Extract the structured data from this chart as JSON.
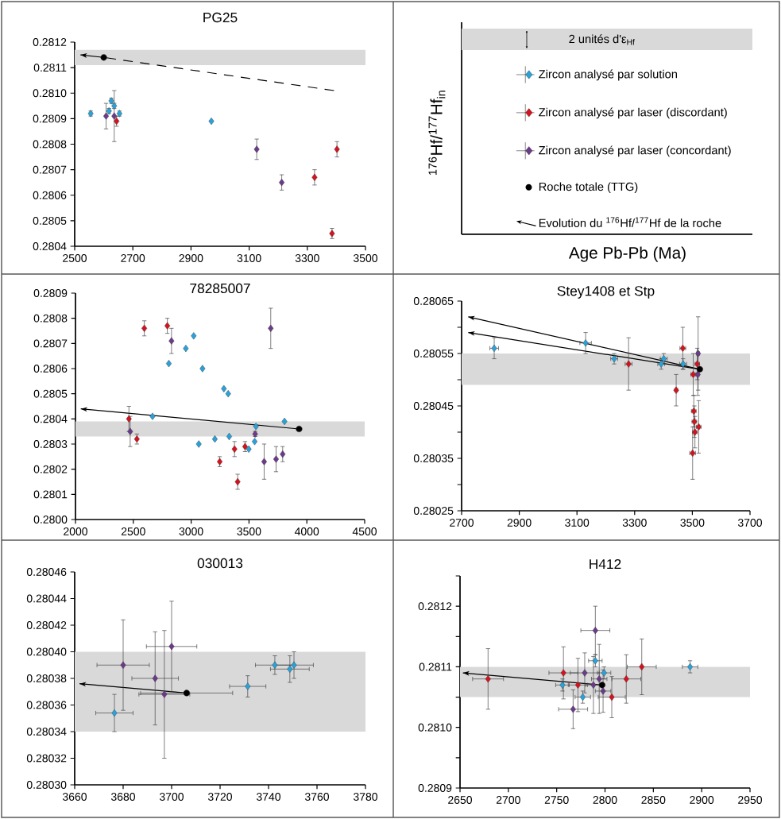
{
  "chart_data": [
    {
      "type": "scatter",
      "title": "PG25",
      "marker": "diamond",
      "xlim": [
        2500,
        3500
      ],
      "ylim": [
        0.2804,
        0.2812
      ],
      "xticks": [
        2500,
        2700,
        2900,
        3100,
        3300,
        3500
      ],
      "yticks": [
        0.2804,
        0.2805,
        0.2806,
        0.2807,
        0.2808,
        0.2809,
        {
          "value": 0.281,
          "label": "0.2810"
        },
        0.2811,
        0.2812
      ],
      "bands": [
        {
          "axis": "y",
          "from": 0.28111,
          "to": 0.28117,
          "color": "#d9d9d9"
        }
      ],
      "series": [
        {
          "type": "line",
          "color": "#000000",
          "marker": "none",
          "line_style": "solid",
          "x": [
            2600,
            2520
          ],
          "values": [
            0.28114,
            0.28115
          ]
        },
        {
          "type": "line",
          "color": "#000000",
          "marker": "none",
          "line_style": "dashed",
          "x": [
            2600,
            3392
          ],
          "values": [
            0.28114,
            0.28101
          ]
        },
        {
          "color": "#29a2d9",
          "x": [
            2555,
            2626,
            2636,
            2618,
            2654,
            2970
          ],
          "values": [
            0.28092,
            0.28097,
            0.28095,
            0.28093,
            0.28092,
            0.28089
          ],
          "errors": [
            1e-05,
            1e-05,
            1e-05,
            1e-05,
            1e-05,
            null
          ]
        },
        {
          "color": "#d5121e",
          "x": [
            2644,
            3325,
            3402,
            3385
          ],
          "values": [
            0.28089,
            0.28067,
            0.28078,
            0.28045
          ],
          "errors": [
            2e-05,
            3e-05,
            3e-05,
            2e-05
          ]
        },
        {
          "color": "#6c3a8a",
          "x": [
            2608,
            2636,
            3126,
            3212
          ],
          "values": [
            0.28091,
            0.28091,
            0.28078,
            0.28065
          ],
          "errors": [
            5e-05,
            0.0001,
            4e-05,
            3e-05
          ]
        },
        {
          "color": "#000000",
          "marker": "circle",
          "x": [
            2600
          ],
          "values": [
            0.28114
          ]
        }
      ]
    },
    {
      "type": "other",
      "xlabel": "Age Pb-Pb (Ma)",
      "ylabel": "$^{176}$Hf/$^{177}$Hf$_{in}$",
      "annotations": [
        "2 unités d'ε$_{Hf}$"
      ],
      "legend": "center",
      "series": [
        {
          "name": "Zircon analysé par solution",
          "color": "#29a2d9",
          "marker": "diamond"
        },
        {
          "name": "Zircon analysé par laser (discordant)",
          "color": "#d5121e",
          "marker": "diamond"
        },
        {
          "name": "Zircon analysé par laser (concordant)",
          "color": "#6c3a8a",
          "marker": "diamond"
        },
        {
          "name": "Roche totale (TTG)",
          "color": "#000000",
          "marker": "circle"
        },
        {
          "name": "Evolution du $^{176}$Hf/$^{177}$Hf de la roche",
          "type": "line",
          "color": "#000000"
        }
      ]
    },
    {
      "type": "scatter",
      "title": "78285007",
      "marker": "diamond",
      "xlim": [
        2000,
        4500
      ],
      "ylim": [
        0.28,
        0.2809
      ],
      "xticks": [
        2000,
        2500,
        3000,
        3500,
        4000,
        4500
      ],
      "yticks": [
        {
          "value": 0.28,
          "label": "0.2800"
        },
        0.2801,
        0.2802,
        0.2803,
        0.2804,
        0.2805,
        0.2806,
        0.2807,
        0.2808,
        0.2809
      ],
      "bands": [
        {
          "axis": "y",
          "from": 0.28033,
          "to": 0.28039,
          "color": "#d9d9d9"
        }
      ],
      "series": [
        {
          "type": "line",
          "color": "#000000",
          "marker": "none",
          "line_style": "solid",
          "x": [
            3933,
            2046
          ],
          "values": [
            0.28036,
            0.28044
          ]
        },
        {
          "color": "#29a2d9",
          "x": [
            2807,
            2666,
            3022,
            2954,
            3098,
            3283,
            3320,
            3066,
            3205,
            3329,
            3560,
            3549,
            3498,
            3807
          ],
          "values": [
            0.28062,
            0.28041,
            0.28073,
            0.28068,
            0.2806,
            0.28052,
            0.2805,
            0.2803,
            0.28032,
            0.28033,
            0.28037,
            0.28031,
            0.28028,
            0.28039
          ]
        },
        {
          "color": "#d5121e",
          "x": [
            2595,
            2794,
            2462,
            2531,
            3247,
            3375,
            3402,
            3466
          ],
          "values": [
            0.28076,
            0.28077,
            0.2804,
            0.28032,
            0.28023,
            0.28028,
            0.28015,
            0.28029
          ],
          "errors": [
            3e-05,
            3e-05,
            5e-05,
            2e-05,
            2e-05,
            3e-05,
            3e-05,
            2e-05
          ]
        },
        {
          "color": "#6c3a8a",
          "x": [
            2473,
            2830,
            3688,
            3553,
            3631,
            3734,
            3791
          ],
          "values": [
            0.28035,
            0.28071,
            0.28076,
            0.28034,
            0.28023,
            0.28024,
            0.28026
          ],
          "errors": [
            6e-05,
            5e-05,
            8e-05,
            1e-05,
            7e-05,
            5e-05,
            3e-05
          ]
        },
        {
          "color": "#000000",
          "marker": "circle",
          "x": [
            3933
          ],
          "values": [
            0.28036
          ]
        }
      ]
    },
    {
      "type": "scatter",
      "title": "Stey1408 et Stp",
      "marker": "diamond",
      "xlim": [
        2700,
        3700
      ],
      "ylim": [
        0.28025,
        0.28065
      ],
      "xticks": [
        2700,
        2900,
        3100,
        3300,
        3500,
        3700
      ],
      "yticks": [
        0.28025,
        {
          "value": 0.2803,
          "label": null
        },
        0.28035,
        {
          "value": 0.2804,
          "label": null
        },
        0.28045,
        {
          "value": 0.2805,
          "label": null
        },
        0.28055,
        {
          "value": 0.2806,
          "label": null
        },
        0.28065
      ],
      "bands": [
        {
          "axis": "y",
          "from": 0.28049,
          "to": 0.28055,
          "color": "#d9d9d9"
        }
      ],
      "series": [
        {
          "type": "line",
          "color": "#000000",
          "marker": "none",
          "line_style": "solid",
          "x": [
            3526,
            2723
          ],
          "values": [
            0.28052,
            0.28062
          ]
        },
        {
          "type": "line",
          "color": "#000000",
          "marker": "none",
          "line_style": "solid",
          "x": [
            3526,
            2723
          ],
          "values": [
            0.28052,
            0.28059
          ]
        },
        {
          "color": "#29a2d9",
          "x": [
            2813,
            3130,
            3229,
            3401,
            3392,
            3468
          ],
          "values": [
            0.28056,
            0.28057,
            0.28054,
            0.28054,
            0.28053,
            0.28053
          ],
          "errors": [
            2e-05,
            2e-05,
            1e-05,
            1e-05,
            1e-05,
            1e-05
          ],
          "xerrors": [
            15,
            20,
            12,
            12,
            12,
            12
          ]
        },
        {
          "color": "#d5121e",
          "x": [
            3279,
            3467,
            3444,
            3503,
            3517,
            3505,
            3507,
            3522,
            3509,
            3501
          ],
          "values": [
            0.28053,
            0.28056,
            0.28048,
            0.28051,
            0.28053,
            0.28044,
            0.28042,
            0.28041,
            0.2804,
            0.28036
          ],
          "errors": [
            5e-05,
            4e-05,
            3e-05,
            4e-05,
            3e-05,
            3e-05,
            3e-05,
            5e-05,
            3e-05,
            5e-05
          ],
          "xerrors": [
            12,
            10,
            5,
            8,
            8,
            8,
            8,
            8,
            8,
            10
          ]
        },
        {
          "color": "#6c3a8a",
          "x": [
            3520,
            3519
          ],
          "values": [
            0.28055,
            0.28051
          ],
          "errors": [
            7e-05,
            4e-05
          ],
          "xerrors": [
            5,
            5
          ]
        },
        {
          "color": "#000000",
          "marker": "circle",
          "x": [
            3526
          ],
          "values": [
            0.28052
          ]
        }
      ]
    },
    {
      "type": "scatter",
      "title": "030013",
      "marker": "diamond",
      "xlim": [
        3660,
        3780
      ],
      "ylim": [
        0.2803,
        0.28046
      ],
      "xticks": [
        3660,
        3680,
        3700,
        3720,
        3740,
        3760,
        3780
      ],
      "yticks": [
        {
          "value": 0.2803,
          "label": "0.28030"
        },
        0.28032,
        0.28034,
        0.28036,
        0.28038,
        {
          "value": 0.2804,
          "label": "0.28040"
        },
        0.28042,
        0.28044,
        0.28046
      ],
      "bands": [
        {
          "axis": "y",
          "from": 0.28034,
          "to": 0.2804,
          "color": "#d9d9d9"
        }
      ],
      "series": [
        {
          "type": "line",
          "color": "#000000",
          "marker": "none",
          "line_style": "solid",
          "x": [
            3706.2,
            3662
          ],
          "values": [
            0.280369,
            0.280376
          ]
        },
        {
          "color": "#29a2d9",
          "x": [
            3676.4,
            3731.4,
            3742.6,
            3748.8,
            3750.5
          ],
          "values": [
            0.280354,
            0.280374,
            0.28039,
            0.280387,
            0.28039
          ],
          "errors": [
            1.4e-05,
            8e-06,
            7e-06,
            1e-05,
            1e-05
          ],
          "xerrors": [
            7.7,
            7.5,
            8,
            8,
            8
          ]
        },
        {
          "color": "#6c3a8a",
          "x": [
            3680,
            3693.2,
            3697,
            3700
          ],
          "values": [
            0.28039,
            0.28038,
            0.280368,
            0.280404
          ],
          "errors": [
            3.4e-05,
            3.5e-05,
            4.8e-05,
            3.4e-05
          ],
          "xerrors": [
            10.8,
            9.6,
            10.5,
            10.4
          ]
        },
        {
          "color": "#000000",
          "marker": "circle",
          "x": [
            3706.2
          ],
          "values": [
            0.280369
          ],
          "xerrors": [
            19
          ]
        }
      ]
    },
    {
      "type": "scatter",
      "title": "H412",
      "marker": "diamond",
      "xlim": [
        2650,
        2950
      ],
      "ylim": [
        0.2809,
        0.28125
      ],
      "xticks": [
        2650,
        2700,
        2750,
        2800,
        2850,
        2900,
        2950
      ],
      "yticks": [
        0.2809,
        {
          "value": 0.28095,
          "label": null
        },
        {
          "value": 0.281,
          "label": "0.2810"
        },
        {
          "value": 0.28105,
          "label": null
        },
        0.2811,
        {
          "value": 0.28115,
          "label": null
        },
        0.2812,
        {
          "value": 0.28125,
          "label": null
        }
      ],
      "bands": [
        {
          "axis": "y",
          "from": 0.28105,
          "to": 0.2811,
          "color": "#d9d9d9"
        }
      ],
      "series": [
        {
          "type": "line",
          "color": "#000000",
          "marker": "none",
          "line_style": "solid",
          "x": [
            2797,
            2653
          ],
          "values": [
            0.28107,
            0.28109
          ]
        },
        {
          "color": "#d5121e",
          "x": [
            2679,
            2757,
            2772,
            2807,
            2822,
            2838
          ],
          "values": [
            0.28108,
            0.28109,
            0.28107,
            0.28105,
            0.28108,
            0.2811
          ],
          "errors": [
            5e-05,
            4.3e-05,
            4.4e-05,
            3.4e-05,
            4e-05,
            4.6e-05
          ],
          "xerrors": [
            16,
            15,
            10,
            14,
            15,
            15
          ]
        },
        {
          "color": "#29a2d9",
          "x": [
            2756,
            2777,
            2790,
            2799,
            2888
          ],
          "values": [
            0.28107,
            0.28105,
            0.28111,
            0.28109,
            0.2811
          ],
          "errors": [
            1e-05,
            1e-05,
            1e-05,
            1e-05,
            1e-05
          ],
          "xerrors": [
            7,
            8,
            7,
            7,
            8
          ]
        },
        {
          "color": "#6c3a8a",
          "x": [
            2790,
            2779,
            2794,
            2788,
            2798,
            2767
          ],
          "values": [
            0.28116,
            0.28109,
            0.28108,
            0.28107,
            0.28106,
            0.28103
          ],
          "errors": [
            4e-05,
            3.3e-05,
            5.7e-05,
            4.7e-05,
            3.5e-05,
            3.2e-05
          ],
          "xerrors": [
            15,
            15,
            8,
            8,
            8,
            15
          ]
        },
        {
          "color": "#000000",
          "marker": "circle",
          "x": [
            2797
          ],
          "values": [
            0.28107
          ]
        }
      ]
    }
  ]
}
